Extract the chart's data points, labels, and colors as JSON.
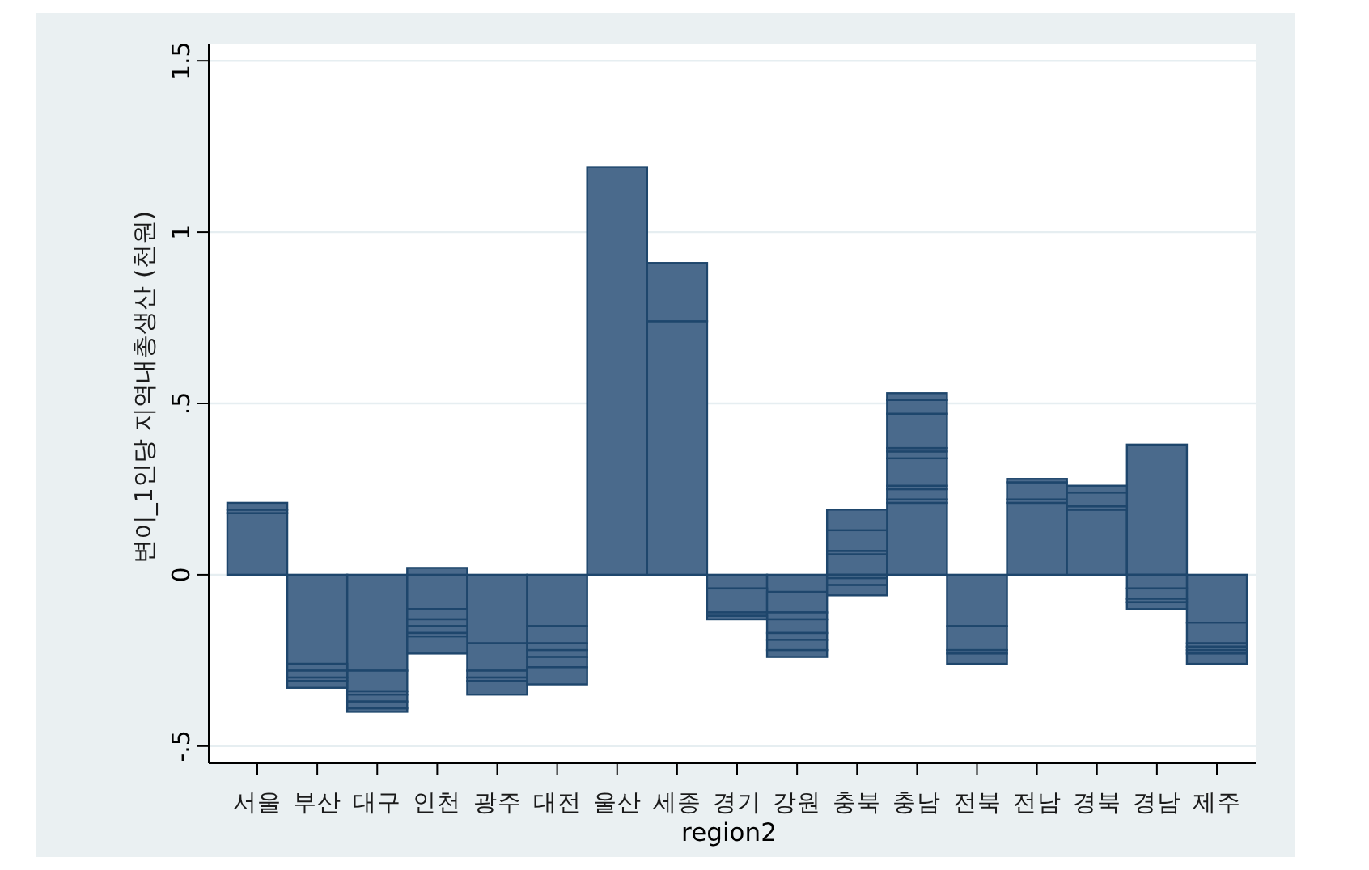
{
  "chart_data": {
    "type": "bar",
    "xlabel": "region2",
    "ylabel": "변이_1인당 지역내총생산 (천원)",
    "categories": [
      "서울",
      "부산",
      "대구",
      "인천",
      "광주",
      "대전",
      "울산",
      "세종",
      "경기",
      "강원",
      "충북",
      "충남",
      "전북",
      "전남",
      "경북",
      "경남",
      "제주"
    ],
    "series": [
      {
        "color": "#4a6a8c",
        "values": [
          0.18,
          -0.26,
          -0.28,
          -0.1,
          -0.2,
          -0.15,
          1.19,
          0.74,
          -0.04,
          -0.05,
          0.06,
          0.21,
          -0.15,
          0.21,
          0.19,
          0.38,
          -0.14
        ]
      },
      {
        "color": "#4a6a8c",
        "values": [
          0.01,
          -0.02,
          -0.06,
          -0.03,
          -0.08,
          -0.05,
          null,
          0.17,
          -0.07,
          -0.06,
          0.01,
          0.01,
          -0.07,
          0.01,
          0.01,
          -0.04,
          -0.06
        ]
      },
      {
        "color": "#4a6a8c",
        "values": [
          0.02,
          -0.02,
          -0.01,
          -0.02,
          -0.02,
          -0.02,
          null,
          null,
          -0.01,
          -0.02,
          0.06,
          0.03,
          -0.01,
          0.05,
          0.04,
          -0.03,
          -0.01
        ]
      },
      {
        "color": "#4a6a8c",
        "values": [
          null,
          -0.01,
          -0.02,
          -0.02,
          -0.01,
          -0.02,
          null,
          null,
          -0.01,
          -0.04,
          0.06,
          0.01,
          -0.03,
          0.01,
          0.02,
          -0.01,
          -0.01
        ]
      },
      {
        "color": "#4a6a8c",
        "values": [
          null,
          -0.02,
          -0.02,
          -0.01,
          -0.04,
          -0.03,
          null,
          null,
          null,
          -0.02,
          -0.01,
          0.08,
          null,
          null,
          null,
          -0.02,
          -0.01
        ]
      },
      {
        "color": "#4a6a8c",
        "values": [
          null,
          null,
          -0.01,
          -0.05,
          null,
          -0.05,
          null,
          null,
          null,
          -0.03,
          -0.02,
          0.02,
          null,
          null,
          null,
          null,
          -0.03
        ]
      },
      {
        "color": "#4a6a8c",
        "values": [
          null,
          null,
          null,
          0.02,
          null,
          null,
          null,
          null,
          null,
          -0.02,
          -0.03,
          0.01,
          null,
          null,
          null,
          null,
          null
        ]
      },
      {
        "color": "#4a6a8c",
        "values": [
          null,
          null,
          null,
          null,
          null,
          null,
          null,
          null,
          null,
          null,
          null,
          0.1,
          null,
          null,
          null,
          null,
          null
        ]
      },
      {
        "color": "#4a6a8c",
        "values": [
          null,
          null,
          null,
          null,
          null,
          null,
          null,
          null,
          null,
          null,
          null,
          0.04,
          null,
          null,
          null,
          null,
          null
        ]
      },
      {
        "color": "#4a6a8c",
        "values": [
          null,
          null,
          null,
          null,
          null,
          null,
          null,
          null,
          null,
          null,
          null,
          0.02,
          null,
          null,
          null,
          null,
          null
        ]
      }
    ],
    "stacked": true,
    "ylim": [
      -0.55,
      1.55
    ],
    "yticks": [
      {
        "value": -0.5,
        "label": "-.5"
      },
      0,
      {
        "value": 0.5,
        "label": ".5"
      },
      1,
      1.5
    ],
    "grid": "y"
  }
}
